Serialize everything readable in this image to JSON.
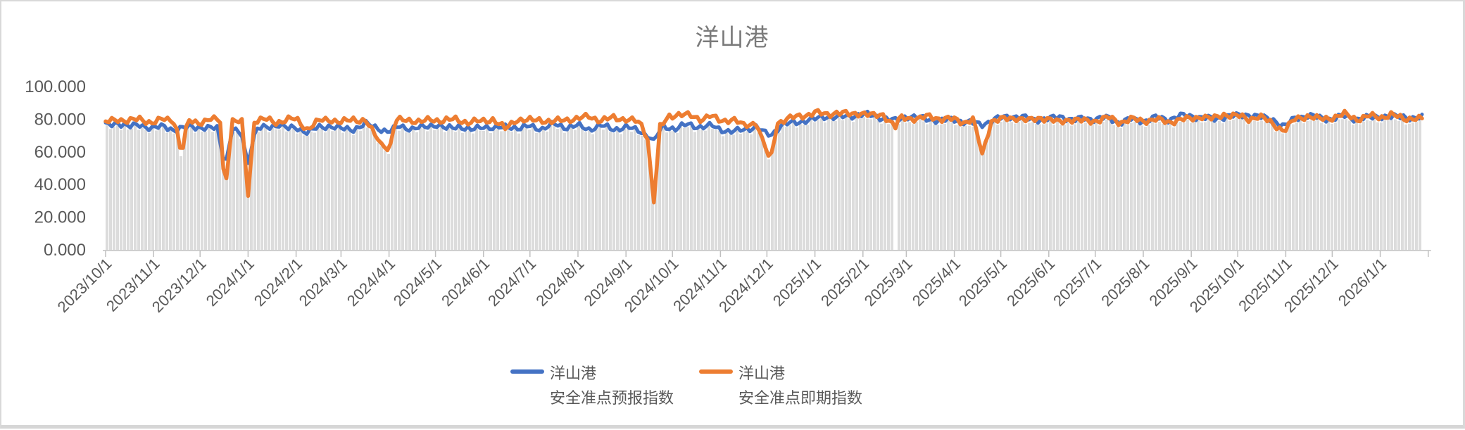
{
  "chart_title": "洋山港",
  "chart_data": {
    "type": "line",
    "title": "洋山港",
    "ylabel": "",
    "xlabel": "",
    "ylim": [
      0,
      100
    ],
    "grid": "vertical-striped-background-bars",
    "legend_position": "bottom",
    "y_ticks": [
      {
        "label": "100.000",
        "value": 100
      },
      {
        "label": "80.000",
        "value": 80
      },
      {
        "label": "60.000",
        "value": 60
      },
      {
        "label": "40.000",
        "value": 40
      },
      {
        "label": "20.000",
        "value": 20
      },
      {
        "label": "0.000",
        "value": 0
      }
    ],
    "x_ticks": [
      {
        "label": "2023/10/1",
        "day": 0
      },
      {
        "label": "2023/11/1",
        "day": 31
      },
      {
        "label": "2023/12/1",
        "day": 61
      },
      {
        "label": "2024/1/1",
        "day": 92
      },
      {
        "label": "2024/2/1",
        "day": 123
      },
      {
        "label": "2024/3/1",
        "day": 152
      },
      {
        "label": "2024/4/1",
        "day": 183
      },
      {
        "label": "2024/5/1",
        "day": 213
      },
      {
        "label": "2024/6/1",
        "day": 244
      },
      {
        "label": "2024/7/1",
        "day": 274
      },
      {
        "label": "2024/8/1",
        "day": 305
      },
      {
        "label": "2024/9/1",
        "day": 336
      },
      {
        "label": "2024/10/1",
        "day": 366
      },
      {
        "label": "2024/11/1",
        "day": 397
      },
      {
        "label": "2024/12/1",
        "day": 427
      },
      {
        "label": "2025/1/1",
        "day": 458
      },
      {
        "label": "2025/2/1",
        "day": 489
      },
      {
        "label": "2025/3/1",
        "day": 517
      },
      {
        "label": "2025/4/1",
        "day": 548
      },
      {
        "label": "2025/5/1",
        "day": 578
      },
      {
        "label": "2025/6/1",
        "day": 609
      },
      {
        "label": "2025/7/1",
        "day": 639
      },
      {
        "label": "2025/8/1",
        "day": 670
      },
      {
        "label": "2025/9/1",
        "day": 701
      },
      {
        "label": "2025/10/1",
        "day": 731
      },
      {
        "label": "2025/11/1",
        "day": 762
      },
      {
        "label": "2025/12/1",
        "day": 792
      },
      {
        "label": "2026/1/1",
        "day": 823
      }
    ],
    "axis_start_day": 0,
    "axis_end_day": 854,
    "data_end_day": 850,
    "background_bar_color": "#dcdcdc",
    "background_bar_gap_day": 510,
    "axis_color": "#bfbfbf",
    "tick_label_color": "#595959",
    "series": [
      {
        "name": "洋山港 安全准点预报指数",
        "color": "#4472C4",
        "anchors": [
          [
            0,
            76
          ],
          [
            8,
            78
          ],
          [
            15,
            75
          ],
          [
            22,
            77
          ],
          [
            30,
            74
          ],
          [
            38,
            76
          ],
          [
            45,
            73
          ],
          [
            49,
            74
          ],
          [
            56,
            76
          ],
          [
            65,
            74
          ],
          [
            72,
            75
          ],
          [
            77,
            51
          ],
          [
            82,
            74
          ],
          [
            88,
            70
          ],
          [
            92,
            53
          ],
          [
            97,
            74
          ],
          [
            105,
            75
          ],
          [
            112,
            77
          ],
          [
            118,
            74
          ],
          [
            123,
            75
          ],
          [
            130,
            72
          ],
          [
            138,
            75
          ],
          [
            145,
            76
          ],
          [
            152,
            74
          ],
          [
            160,
            74
          ],
          [
            168,
            77
          ],
          [
            175,
            75
          ],
          [
            183,
            72
          ],
          [
            190,
            76
          ],
          [
            198,
            74
          ],
          [
            205,
            75
          ],
          [
            213,
            77
          ],
          [
            220,
            74
          ],
          [
            228,
            76
          ],
          [
            236,
            73
          ],
          [
            244,
            76
          ],
          [
            252,
            74
          ],
          [
            260,
            76
          ],
          [
            268,
            74
          ],
          [
            274,
            76
          ],
          [
            282,
            74
          ],
          [
            290,
            77
          ],
          [
            298,
            75
          ],
          [
            305,
            76
          ],
          [
            312,
            74
          ],
          [
            320,
            76
          ],
          [
            328,
            74
          ],
          [
            336,
            75
          ],
          [
            345,
            73
          ],
          [
            354,
            67
          ],
          [
            360,
            76
          ],
          [
            368,
            74
          ],
          [
            376,
            77
          ],
          [
            385,
            75
          ],
          [
            392,
            76
          ],
          [
            397,
            74
          ],
          [
            404,
            72
          ],
          [
            412,
            74
          ],
          [
            420,
            75
          ],
          [
            429,
            70
          ],
          [
            436,
            76
          ],
          [
            444,
            78
          ],
          [
            451,
            79
          ],
          [
            458,
            80
          ],
          [
            465,
            82
          ],
          [
            472,
            81
          ],
          [
            480,
            82
          ],
          [
            490,
            83
          ],
          [
            497,
            82
          ],
          [
            505,
            80
          ],
          [
            510,
            79
          ],
          [
            517,
            82
          ],
          [
            524,
            81
          ],
          [
            532,
            80
          ],
          [
            540,
            79
          ],
          [
            548,
            80
          ],
          [
            556,
            78
          ],
          [
            566,
            77
          ],
          [
            575,
            80
          ],
          [
            583,
            82
          ],
          [
            592,
            81
          ],
          [
            600,
            80
          ],
          [
            609,
            80
          ],
          [
            617,
            82
          ],
          [
            625,
            79
          ],
          [
            632,
            81
          ],
          [
            639,
            80
          ],
          [
            647,
            81
          ],
          [
            655,
            78
          ],
          [
            662,
            80
          ],
          [
            670,
            79
          ],
          [
            678,
            81
          ],
          [
            686,
            80
          ],
          [
            694,
            82
          ],
          [
            701,
            82
          ],
          [
            708,
            81
          ],
          [
            716,
            80
          ],
          [
            724,
            82
          ],
          [
            731,
            82
          ],
          [
            738,
            83
          ],
          [
            746,
            81
          ],
          [
            754,
            80
          ],
          [
            761,
            75
          ],
          [
            768,
            81
          ],
          [
            776,
            82
          ],
          [
            784,
            81
          ],
          [
            792,
            80
          ],
          [
            800,
            82
          ],
          [
            808,
            80
          ],
          [
            816,
            81
          ],
          [
            823,
            82
          ],
          [
            830,
            81
          ],
          [
            838,
            82
          ],
          [
            845,
            80
          ],
          [
            850,
            81
          ]
        ]
      },
      {
        "name": "洋山港 安全准点即期指数",
        "color": "#ED7D31",
        "anchors": [
          [
            0,
            78
          ],
          [
            8,
            80
          ],
          [
            15,
            79
          ],
          [
            22,
            80
          ],
          [
            30,
            78
          ],
          [
            38,
            80
          ],
          [
            45,
            79
          ],
          [
            49,
            57
          ],
          [
            53,
            79
          ],
          [
            60,
            78
          ],
          [
            68,
            80
          ],
          [
            74,
            79
          ],
          [
            77,
            35
          ],
          [
            82,
            79
          ],
          [
            88,
            78
          ],
          [
            92,
            33
          ],
          [
            96,
            79
          ],
          [
            103,
            80
          ],
          [
            110,
            78
          ],
          [
            118,
            80
          ],
          [
            123,
            80
          ],
          [
            130,
            74
          ],
          [
            138,
            79
          ],
          [
            145,
            80
          ],
          [
            152,
            78
          ],
          [
            160,
            80
          ],
          [
            168,
            79
          ],
          [
            174,
            70
          ],
          [
            179,
            64
          ],
          [
            183,
            60
          ],
          [
            187,
            79
          ],
          [
            195,
            80
          ],
          [
            203,
            78
          ],
          [
            210,
            80
          ],
          [
            218,
            79
          ],
          [
            226,
            80
          ],
          [
            234,
            78
          ],
          [
            244,
            79
          ],
          [
            250,
            80
          ],
          [
            258,
            74
          ],
          [
            265,
            80
          ],
          [
            272,
            79
          ],
          [
            280,
            80
          ],
          [
            288,
            78
          ],
          [
            296,
            80
          ],
          [
            305,
            80
          ],
          [
            312,
            82
          ],
          [
            320,
            79
          ],
          [
            328,
            81
          ],
          [
            336,
            80
          ],
          [
            345,
            78
          ],
          [
            350,
            68
          ],
          [
            354,
            29
          ],
          [
            358,
            75
          ],
          [
            364,
            82
          ],
          [
            370,
            83
          ],
          [
            378,
            82
          ],
          [
            385,
            80
          ],
          [
            390,
            82
          ],
          [
            397,
            79
          ],
          [
            405,
            80
          ],
          [
            412,
            76
          ],
          [
            420,
            78
          ],
          [
            429,
            55
          ],
          [
            434,
            78
          ],
          [
            440,
            80
          ],
          [
            448,
            82
          ],
          [
            455,
            83
          ],
          [
            458,
            84
          ],
          [
            465,
            83
          ],
          [
            472,
            84
          ],
          [
            480,
            83
          ],
          [
            487,
            84
          ],
          [
            495,
            82
          ],
          [
            502,
            83
          ],
          [
            510,
            75
          ],
          [
            513,
            81
          ],
          [
            517,
            81
          ],
          [
            525,
            80
          ],
          [
            532,
            82
          ],
          [
            540,
            80
          ],
          [
            548,
            80
          ],
          [
            555,
            78
          ],
          [
            560,
            80
          ],
          [
            566,
            59
          ],
          [
            572,
            79
          ],
          [
            580,
            80
          ],
          [
            588,
            81
          ],
          [
            596,
            79
          ],
          [
            604,
            81
          ],
          [
            609,
            80
          ],
          [
            615,
            78
          ],
          [
            622,
            80
          ],
          [
            630,
            79
          ],
          [
            639,
            79
          ],
          [
            648,
            81
          ],
          [
            655,
            78
          ],
          [
            662,
            80
          ],
          [
            670,
            79
          ],
          [
            678,
            80
          ],
          [
            686,
            78
          ],
          [
            694,
            80
          ],
          [
            701,
            80
          ],
          [
            708,
            82
          ],
          [
            715,
            80
          ],
          [
            722,
            83
          ],
          [
            731,
            82
          ],
          [
            738,
            80
          ],
          [
            745,
            82
          ],
          [
            752,
            78
          ],
          [
            761,
            73
          ],
          [
            768,
            80
          ],
          [
            776,
            82
          ],
          [
            784,
            80
          ],
          [
            792,
            81
          ],
          [
            800,
            83
          ],
          [
            808,
            80
          ],
          [
            816,
            82
          ],
          [
            823,
            81
          ],
          [
            830,
            83
          ],
          [
            838,
            80
          ],
          [
            845,
            81
          ],
          [
            850,
            80
          ]
        ]
      }
    ],
    "legend": [
      {
        "line1": "洋山港",
        "line2": "安全准点预报指数",
        "color": "#4472C4"
      },
      {
        "line1": "洋山港",
        "line2": "安全准点即期指数",
        "color": "#ED7D31"
      }
    ]
  }
}
